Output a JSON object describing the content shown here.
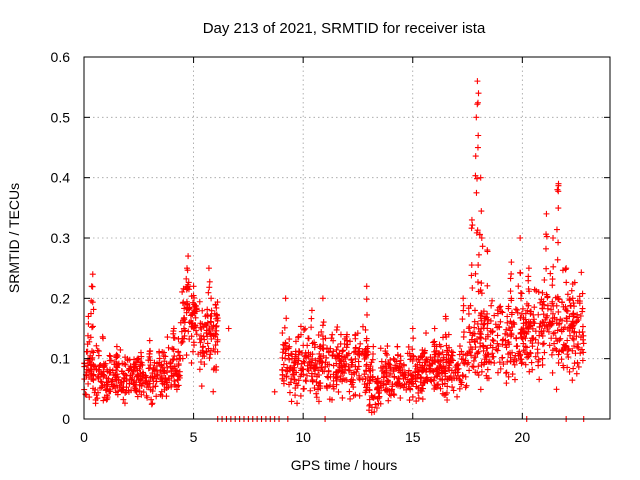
{
  "chart_data": {
    "type": "scatter",
    "title": "Day 213 of 2021, SRMTID for receiver ista",
    "xlabel": "GPS time / hours",
    "ylabel": "SRMTID / TECUs",
    "xlim": [
      0,
      24
    ],
    "ylim": [
      0,
      0.6
    ],
    "xticks": [
      0,
      5,
      10,
      15,
      20
    ],
    "yticks": [
      0,
      0.1,
      0.2,
      0.3,
      0.4,
      0.5,
      0.6
    ],
    "grid": true,
    "marker": "+",
    "color": "#ff0000",
    "series": [
      {
        "name": "SRMTID",
        "segments": [
          {
            "range": [
              0.0,
              1.0
            ],
            "base": 0.075,
            "spread": 0.035,
            "spikes": [
              [
                0.2,
                0.17
              ],
              [
                0.35,
                0.22
              ],
              [
                0.4,
                0.24
              ]
            ]
          },
          {
            "range": [
              1.0,
              3.8
            ],
            "base": 0.07,
            "spread": 0.03,
            "spikes": [
              [
                1.5,
                0.12
              ],
              [
                2.6,
                0.11
              ],
              [
                3.0,
                0.13
              ]
            ]
          },
          {
            "range": [
              3.8,
              4.4
            ],
            "base": 0.09,
            "spread": 0.04,
            "spikes": [
              [
                4.1,
                0.15
              ]
            ]
          },
          {
            "range": [
              4.4,
              5.2
            ],
            "base": 0.16,
            "spread": 0.05,
            "spikes": [
              [
                4.7,
                0.25
              ],
              [
                4.75,
                0.27
              ],
              [
                5.0,
                0.22
              ]
            ]
          },
          {
            "range": [
              5.2,
              6.1
            ],
            "base": 0.13,
            "spread": 0.05,
            "spikes": [
              [
                5.7,
                0.25
              ],
              [
                5.8,
                0.2
              ],
              [
                6.0,
                0.19
              ]
            ]
          },
          {
            "range": [
              9.0,
              11.0
            ],
            "base": 0.09,
            "spread": 0.04,
            "spikes": [
              [
                9.2,
                0.2
              ],
              [
                10.4,
                0.18
              ],
              [
                10.9,
                0.2
              ]
            ]
          },
          {
            "range": [
              11.0,
              13.0
            ],
            "base": 0.09,
            "spread": 0.04,
            "spikes": [
              [
                12.0,
                0.14
              ],
              [
                12.9,
                0.22
              ]
            ]
          },
          {
            "range": [
              13.0,
              13.5
            ],
            "base": 0.05,
            "spread": 0.03,
            "spikes": [
              [
                13.2,
                0.12
              ]
            ]
          },
          {
            "range": [
              13.5,
              15.5
            ],
            "base": 0.075,
            "spread": 0.03,
            "spikes": [
              [
                14.3,
                0.12
              ],
              [
                15.0,
                0.15
              ]
            ]
          },
          {
            "range": [
              15.5,
              17.5
            ],
            "base": 0.085,
            "spread": 0.035,
            "spikes": [
              [
                16.0,
                0.15
              ],
              [
                16.5,
                0.17
              ],
              [
                17.3,
                0.2
              ]
            ]
          },
          {
            "range": [
              17.5,
              18.6
            ],
            "base": 0.12,
            "spread": 0.05,
            "spikes": [
              [
                17.7,
                0.33
              ],
              [
                17.9,
                0.5
              ],
              [
                17.95,
                0.56
              ],
              [
                18.0,
                0.54
              ],
              [
                18.1,
                0.4
              ],
              [
                18.15,
                0.3
              ],
              [
                18.4,
                0.28
              ]
            ]
          },
          {
            "range": [
              18.6,
              20.5
            ],
            "base": 0.14,
            "spread": 0.05,
            "spikes": [
              [
                19.5,
                0.26
              ],
              [
                19.9,
                0.3
              ],
              [
                20.3,
                0.25
              ]
            ]
          },
          {
            "range": [
              20.5,
              22.8
            ],
            "base": 0.15,
            "spread": 0.06,
            "spikes": [
              [
                21.1,
                0.34
              ],
              [
                21.4,
                0.3
              ],
              [
                21.6,
                0.38
              ],
              [
                21.65,
                0.39
              ],
              [
                22.0,
                0.25
              ],
              [
                22.3,
                0.2
              ]
            ]
          }
        ],
        "isolated": [
          [
            6.6,
            0.15
          ],
          [
            8.7,
            0.045
          ]
        ],
        "zero_points": [
          6.1,
          6.3,
          6.5,
          6.7,
          6.9,
          7.1,
          7.3,
          7.5,
          7.7,
          7.9,
          8.1,
          8.3,
          8.5,
          8.7,
          8.9,
          9.3,
          11.0,
          20.2,
          22.0,
          22.8
        ]
      }
    ]
  }
}
